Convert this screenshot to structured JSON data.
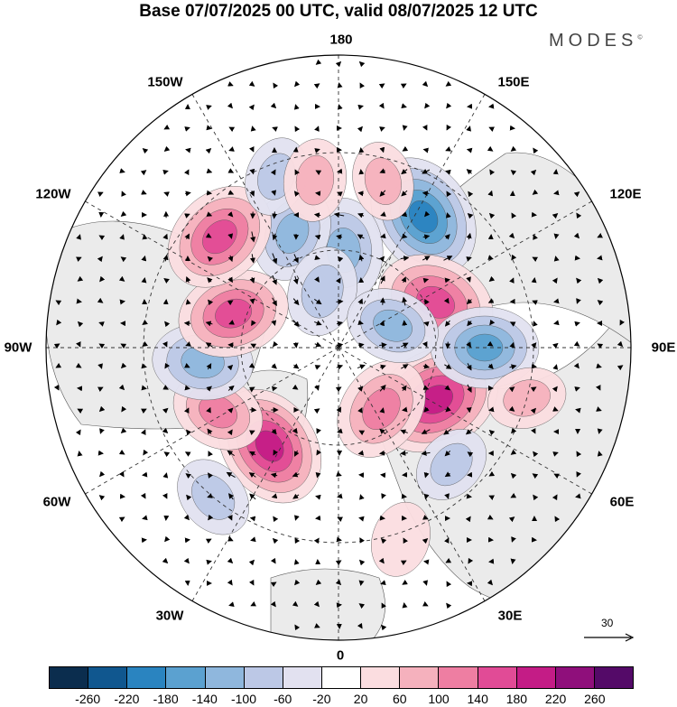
{
  "title": "Base 07/07/2025 00 UTC, valid 08/07/2025 12 UTC",
  "logo": "MODES",
  "logo_mark": "©",
  "lon_labels": [
    "180",
    "150E",
    "120E",
    "90E",
    "60E",
    "30E",
    "0",
    "30W",
    "60W",
    "90W",
    "120W",
    "150W"
  ],
  "vector_scale": "30",
  "colorbar": {
    "colors": [
      "#0b2d4e",
      "#10578f",
      "#2a84c0",
      "#5ba1d0",
      "#8fb7dd",
      "#bcc8e6",
      "#e2e1f0",
      "#ffffff",
      "#fbdde0",
      "#f5b1bd",
      "#ee7ea2",
      "#e14b96",
      "#c41c86",
      "#8f0f7b",
      "#540a68"
    ],
    "ticks": [
      "-260",
      "-220",
      "-180",
      "-140",
      "-100",
      "-60",
      "-20",
      "20",
      "60",
      "100",
      "140",
      "180",
      "220",
      "260"
    ]
  },
  "anomalies": [
    {
      "lon": 147,
      "lat": 42,
      "value": -190
    },
    {
      "lon": 177,
      "lat": 60,
      "value": -130
    },
    {
      "lon": -158,
      "lat": 52,
      "value": -110
    },
    {
      "lon": -164,
      "lat": 72,
      "value": -90
    },
    {
      "lon": 115,
      "lat": 57,
      "value": 170
    },
    {
      "lon": 62,
      "lat": 56,
      "value": 200
    },
    {
      "lon": 35,
      "lat": 67,
      "value": 130
    },
    {
      "lon": -35,
      "lat": 53,
      "value": 180
    },
    {
      "lon": -62,
      "lat": 48,
      "value": 100
    },
    {
      "lon": -84,
      "lat": 48,
      "value": -120
    },
    {
      "lon": -108,
      "lat": 56,
      "value": 150
    },
    {
      "lon": -133,
      "lat": 40,
      "value": 160
    },
    {
      "lon": 90,
      "lat": 45,
      "value": -140
    },
    {
      "lon": 112,
      "lat": 72,
      "value": -100
    },
    {
      "lon": 44,
      "lat": 40,
      "value": -60
    },
    {
      "lon": -160,
      "lat": 34,
      "value": -60
    },
    {
      "lon": -172,
      "lat": 38,
      "value": 70
    },
    {
      "lon": 165,
      "lat": 37,
      "value": 60
    },
    {
      "lon": 75,
      "lat": 30,
      "value": 60
    },
    {
      "lon": -40,
      "lat": 30,
      "value": -70
    },
    {
      "lon": 18,
      "lat": 28,
      "value": 50
    }
  ]
}
